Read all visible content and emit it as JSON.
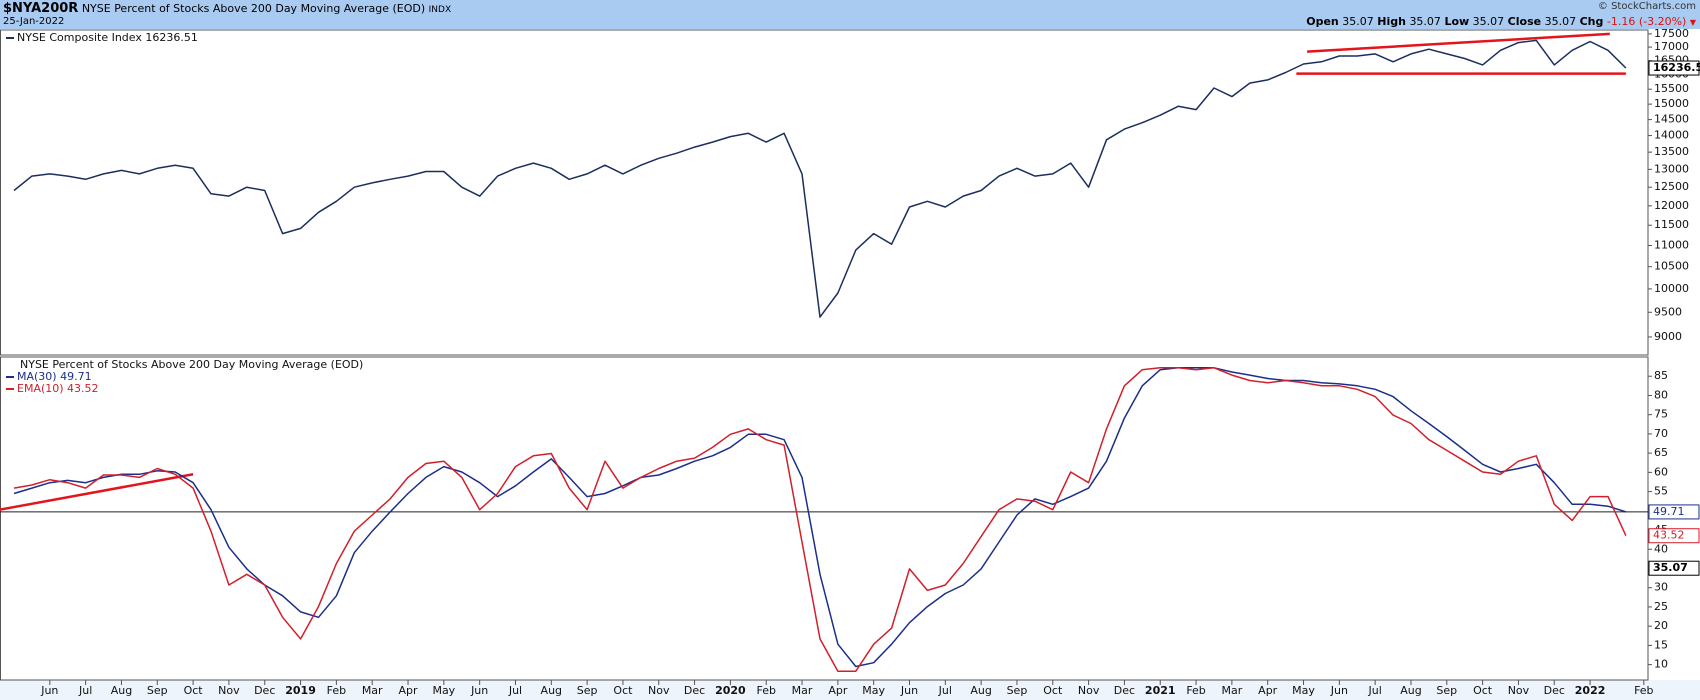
{
  "header": {
    "symbol": "$NYA200R",
    "name": "NYSE Percent of Stocks Above 200 Day Moving Average (EOD)",
    "exchange": "INDX",
    "date": "25-Jan-2022",
    "credit": "© StockCharts.com",
    "quote": [
      {
        "label": "Open",
        "value": "35.07"
      },
      {
        "label": "High",
        "value": "35.07"
      },
      {
        "label": "Low",
        "value": "35.07"
      },
      {
        "label": "Close",
        "value": "35.07"
      },
      {
        "label": "Chg",
        "value": "-1.16 (-3.20%)"
      }
    ]
  },
  "chart_data": [
    {
      "type": "line",
      "log_scale": true,
      "ylim": [
        8650,
        17650
      ],
      "yticks": [
        9000,
        9500,
        10000,
        10500,
        11000,
        11500,
        12000,
        12500,
        13000,
        13500,
        14000,
        14500,
        15000,
        15500,
        16000,
        16500,
        17000,
        17500
      ],
      "series": [
        {
          "name": "NYSE Composite Index",
          "color": "#1b2f5e",
          "values": [
            12410,
            12810,
            12870,
            12810,
            12720,
            12870,
            12970,
            12870,
            13030,
            13120,
            13030,
            12320,
            12260,
            12500,
            12410,
            11290,
            11420,
            11830,
            12120,
            12500,
            12620,
            12720,
            12810,
            12940,
            12940,
            12500,
            12260,
            12810,
            13030,
            13180,
            13030,
            12720,
            12870,
            13120,
            12870,
            13120,
            13320,
            13470,
            13650,
            13800,
            13970,
            14070,
            13800,
            14070,
            12870,
            9400,
            9910,
            10890,
            11290,
            11030,
            11970,
            12120,
            11970,
            12260,
            12410,
            12810,
            13030,
            12810,
            12870,
            13180,
            12500,
            13870,
            14200,
            14400,
            14640,
            14930,
            14820,
            15540,
            15250,
            15710,
            15820,
            16080,
            16380,
            16460,
            16670,
            16670,
            16750,
            16460,
            16750,
            16920,
            16750,
            16580,
            16350,
            16880,
            17170,
            17250,
            16350,
            16880,
            17210,
            16880,
            16236.51,
            null
          ]
        }
      ],
      "trendlines": [
        {
          "color": "#e3141b",
          "start": [
            72.2,
            16830
          ],
          "end": [
            89.1,
            17500
          ]
        },
        {
          "color": "#e3141b",
          "start": [
            71.6,
            16040
          ],
          "end": [
            90,
            16040
          ]
        }
      ]
    },
    {
      "type": "line",
      "title": "NYSE Percent of Stocks Above 200 Day Moving Average (EOD)",
      "ylim": [
        6,
        90
      ],
      "yticks": [
        10,
        15,
        20,
        25,
        30,
        35,
        40,
        45,
        50,
        55,
        60,
        65,
        70,
        75,
        80,
        85
      ],
      "last_close": 35.07,
      "categories": [
        null,
        null,
        "Jun",
        null,
        "Jul",
        null,
        "Aug",
        null,
        "Sep",
        null,
        "Oct",
        null,
        "Nov",
        null,
        "Dec",
        null,
        "2019",
        null,
        "Feb",
        null,
        "Mar",
        null,
        "Apr",
        null,
        "May",
        null,
        "Jun",
        null,
        "Jul",
        null,
        "Aug",
        null,
        "Sep",
        null,
        "Oct",
        null,
        "Nov",
        null,
        "Dec",
        null,
        "2020",
        null,
        "Feb",
        null,
        "Mar",
        null,
        "Apr",
        null,
        "May",
        null,
        "Jun",
        null,
        "Jul",
        null,
        "Aug",
        null,
        "Sep",
        null,
        "Oct",
        null,
        "Nov",
        null,
        "Dec",
        null,
        "2021",
        null,
        "Feb",
        null,
        "Mar",
        null,
        "Apr",
        null,
        "May",
        null,
        "Jun",
        null,
        "Jul",
        null,
        "Aug",
        null,
        "Sep",
        null,
        "Oct",
        null,
        "Nov",
        null,
        "Dec",
        null,
        "2022",
        null,
        null,
        "Feb"
      ],
      "series": [
        {
          "name": "MA(30)",
          "color": "#1b2f8a",
          "values": [
            54.5,
            55.9,
            57.3,
            57.9,
            57.3,
            58.7,
            59.5,
            59.5,
            60.4,
            60.1,
            57.3,
            50.3,
            40.5,
            34.9,
            30.7,
            27.9,
            23.7,
            22.3,
            27.9,
            39.1,
            44.7,
            49.7,
            54.5,
            58.7,
            61.5,
            60.1,
            57.3,
            53.7,
            56.5,
            60.1,
            63.5,
            58.7,
            53.7,
            54.5,
            56.5,
            58.7,
            59.3,
            61.0,
            62.9,
            64.3,
            66.5,
            69.9,
            69.9,
            68.5,
            58.7,
            33.5,
            15.3,
            9.5,
            10.5,
            15.3,
            20.9,
            25.1,
            28.5,
            30.7,
            34.9,
            41.9,
            48.9,
            53.1,
            51.7,
            53.7,
            55.9,
            62.9,
            74.1,
            82.5,
            86.7,
            87.2,
            87.2,
            87.2,
            86.1,
            85.3,
            84.4,
            83.9,
            83.9,
            83.3,
            83.0,
            82.5,
            81.6,
            79.7,
            76.0,
            72.7,
            69.3,
            65.7,
            62.1,
            60.1,
            61.0,
            62.1,
            57.3,
            51.7,
            51.7,
            51.2,
            49.71,
            null
          ]
        },
        {
          "name": "EMA(10)",
          "color": "#d0202c",
          "values": [
            55.9,
            56.7,
            58.1,
            57.3,
            55.9,
            59.3,
            59.3,
            58.7,
            61.0,
            59.5,
            55.9,
            44.7,
            30.7,
            33.5,
            30.7,
            22.3,
            16.7,
            25.1,
            36.3,
            44.7,
            48.9,
            53.1,
            58.7,
            62.3,
            62.9,
            58.7,
            50.3,
            54.5,
            61.5,
            64.3,
            64.9,
            55.9,
            50.3,
            62.9,
            55.9,
            58.7,
            61.0,
            62.9,
            63.7,
            66.5,
            69.9,
            71.3,
            68.5,
            67.1,
            41.9,
            16.7,
            8.3,
            8.3,
            15.3,
            19.5,
            34.9,
            29.3,
            30.7,
            36.3,
            43.3,
            50.3,
            53.1,
            52.5,
            50.3,
            60.1,
            57.3,
            71.3,
            82.5,
            86.7,
            87.2,
            87.2,
            86.7,
            87.2,
            85.3,
            83.9,
            83.3,
            83.9,
            83.3,
            82.5,
            82.5,
            81.6,
            79.7,
            74.9,
            72.7,
            68.5,
            65.7,
            62.9,
            60.1,
            59.5,
            62.9,
            64.3,
            51.7,
            47.5,
            53.7,
            53.7,
            43.52,
            null
          ]
        }
      ],
      "trendlines": [
        {
          "color": "#e3141b",
          "start": [
            -0.8,
            50.3
          ],
          "end": [
            10,
            59.5
          ]
        }
      ]
    }
  ]
}
